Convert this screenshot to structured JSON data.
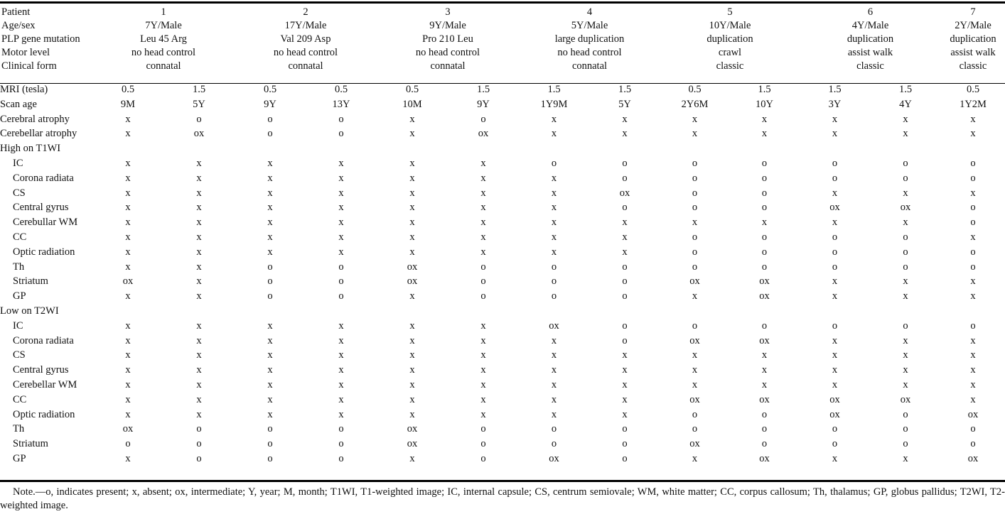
{
  "header": {
    "labels": [
      "Patient",
      "Age/sex",
      "PLP gene mutation",
      "Motor level",
      "Clinical form"
    ],
    "patients": [
      {
        "id": "1",
        "age_sex": "7Y/Male",
        "mutation": "Leu 45 Arg",
        "motor": "no head control",
        "form": "connatal"
      },
      {
        "id": "2",
        "age_sex": "17Y/Male",
        "mutation": "Val 209 Asp",
        "motor": "no head control",
        "form": "connatal"
      },
      {
        "id": "3",
        "age_sex": "9Y/Male",
        "mutation": "Pro 210 Leu",
        "motor": "no head control",
        "form": "connatal"
      },
      {
        "id": "4",
        "age_sex": "5Y/Male",
        "mutation": "large duplication",
        "motor": "no head control",
        "form": "connatal"
      },
      {
        "id": "5",
        "age_sex": "10Y/Male",
        "mutation": "duplication",
        "motor": "crawl",
        "form": "classic"
      },
      {
        "id": "6",
        "age_sex": "4Y/Male",
        "mutation": "duplication",
        "motor": "assist walk",
        "form": "classic"
      },
      {
        "id": "7",
        "age_sex": "2Y/Male",
        "mutation": "duplication",
        "motor": "assist walk",
        "form": "classic"
      }
    ]
  },
  "rows": [
    {
      "label": "MRI (tesla)",
      "indent": false,
      "cells": [
        "0.5",
        "1.5",
        "0.5",
        "0.5",
        "0.5",
        "1.5",
        "1.5",
        "1.5",
        "0.5",
        "1.5",
        "1.5",
        "1.5",
        "0.5"
      ]
    },
    {
      "label": "Scan age",
      "indent": false,
      "cells": [
        "9M",
        "5Y",
        "9Y",
        "13Y",
        "10M",
        "9Y",
        "1Y9M",
        "5Y",
        "2Y6M",
        "10Y",
        "3Y",
        "4Y",
        "1Y2M"
      ]
    },
    {
      "label": "Cerebral atrophy",
      "indent": false,
      "cells": [
        "x",
        "o",
        "o",
        "o",
        "x",
        "o",
        "x",
        "x",
        "x",
        "x",
        "x",
        "x",
        "x"
      ]
    },
    {
      "label": "Cerebellar atrophy",
      "indent": false,
      "cells": [
        "x",
        "ox",
        "o",
        "o",
        "x",
        "ox",
        "x",
        "x",
        "x",
        "x",
        "x",
        "x",
        "x"
      ]
    },
    {
      "label": "High on T1WI",
      "indent": false,
      "cells": [
        "",
        "",
        "",
        "",
        "",
        "",
        "",
        "",
        "",
        "",
        "",
        "",
        ""
      ]
    },
    {
      "label": "IC",
      "indent": true,
      "cells": [
        "x",
        "x",
        "x",
        "x",
        "x",
        "x",
        "o",
        "o",
        "o",
        "o",
        "o",
        "o",
        "o"
      ]
    },
    {
      "label": "Corona radiata",
      "indent": true,
      "cells": [
        "x",
        "x",
        "x",
        "x",
        "x",
        "x",
        "x",
        "o",
        "o",
        "o",
        "o",
        "o",
        "o"
      ]
    },
    {
      "label": "CS",
      "indent": true,
      "cells": [
        "x",
        "x",
        "x",
        "x",
        "x",
        "x",
        "x",
        "ox",
        "o",
        "o",
        "x",
        "x",
        "x"
      ]
    },
    {
      "label": "Central gyrus",
      "indent": true,
      "cells": [
        "x",
        "x",
        "x",
        "x",
        "x",
        "x",
        "x",
        "o",
        "o",
        "o",
        "ox",
        "ox",
        "o"
      ]
    },
    {
      "label": "Cerebullar WM",
      "indent": true,
      "cells": [
        "x",
        "x",
        "x",
        "x",
        "x",
        "x",
        "x",
        "x",
        "x",
        "x",
        "x",
        "x",
        "o"
      ]
    },
    {
      "label": "CC",
      "indent": true,
      "cells": [
        "x",
        "x",
        "x",
        "x",
        "x",
        "x",
        "x",
        "x",
        "o",
        "o",
        "o",
        "o",
        "x"
      ]
    },
    {
      "label": "Optic radiation",
      "indent": true,
      "cells": [
        "x",
        "x",
        "x",
        "x",
        "x",
        "x",
        "x",
        "x",
        "o",
        "o",
        "o",
        "o",
        "o"
      ]
    },
    {
      "label": "Th",
      "indent": true,
      "cells": [
        "x",
        "x",
        "o",
        "o",
        "ox",
        "o",
        "o",
        "o",
        "o",
        "o",
        "o",
        "o",
        "o"
      ]
    },
    {
      "label": "Striatum",
      "indent": true,
      "cells": [
        "ox",
        "x",
        "o",
        "o",
        "ox",
        "o",
        "o",
        "o",
        "ox",
        "ox",
        "x",
        "x",
        "x"
      ]
    },
    {
      "label": "GP",
      "indent": true,
      "cells": [
        "x",
        "x",
        "o",
        "o",
        "x",
        "o",
        "o",
        "o",
        "x",
        "ox",
        "x",
        "x",
        "x"
      ]
    },
    {
      "label": "Low on T2WI",
      "indent": false,
      "cells": [
        "",
        "",
        "",
        "",
        "",
        "",
        "",
        "",
        "",
        "",
        "",
        "",
        ""
      ]
    },
    {
      "label": "IC",
      "indent": true,
      "cells": [
        "x",
        "x",
        "x",
        "x",
        "x",
        "x",
        "ox",
        "o",
        "o",
        "o",
        "o",
        "o",
        "o"
      ]
    },
    {
      "label": "Corona radiata",
      "indent": true,
      "cells": [
        "x",
        "x",
        "x",
        "x",
        "x",
        "x",
        "x",
        "o",
        "ox",
        "ox",
        "x",
        "x",
        "x"
      ]
    },
    {
      "label": "CS",
      "indent": true,
      "cells": [
        "x",
        "x",
        "x",
        "x",
        "x",
        "x",
        "x",
        "x",
        "x",
        "x",
        "x",
        "x",
        "x"
      ]
    },
    {
      "label": "Central gyrus",
      "indent": true,
      "cells": [
        "x",
        "x",
        "x",
        "x",
        "x",
        "x",
        "x",
        "x",
        "x",
        "x",
        "x",
        "x",
        "x"
      ]
    },
    {
      "label": "Cerebellar WM",
      "indent": true,
      "cells": [
        "x",
        "x",
        "x",
        "x",
        "x",
        "x",
        "x",
        "x",
        "x",
        "x",
        "x",
        "x",
        "x"
      ]
    },
    {
      "label": "CC",
      "indent": true,
      "cells": [
        "x",
        "x",
        "x",
        "x",
        "x",
        "x",
        "x",
        "x",
        "ox",
        "ox",
        "ox",
        "ox",
        "x"
      ]
    },
    {
      "label": "Optic radiation",
      "indent": true,
      "cells": [
        "x",
        "x",
        "x",
        "x",
        "x",
        "x",
        "x",
        "x",
        "o",
        "o",
        "ox",
        "o",
        "ox"
      ]
    },
    {
      "label": "Th",
      "indent": true,
      "cells": [
        "ox",
        "o",
        "o",
        "o",
        "ox",
        "o",
        "o",
        "o",
        "o",
        "o",
        "o",
        "o",
        "o"
      ]
    },
    {
      "label": "Striatum",
      "indent": true,
      "cells": [
        "o",
        "o",
        "o",
        "o",
        "ox",
        "o",
        "o",
        "o",
        "ox",
        "o",
        "o",
        "o",
        "o"
      ]
    },
    {
      "label": "GP",
      "indent": true,
      "cells": [
        "x",
        "o",
        "o",
        "o",
        "x",
        "o",
        "ox",
        "o",
        "x",
        "ox",
        "x",
        "x",
        "ox"
      ]
    }
  ],
  "note": "Note.—o, indicates present; x, absent; ox, intermediate; Y, year; M, month; T1WI, T1-weighted image; IC, internal capsule; CS, centrum semiovale; WM, white matter; CC, corpus callosum; Th, thalamus; GP, globus pallidus; T2WI, T2-weighted image."
}
